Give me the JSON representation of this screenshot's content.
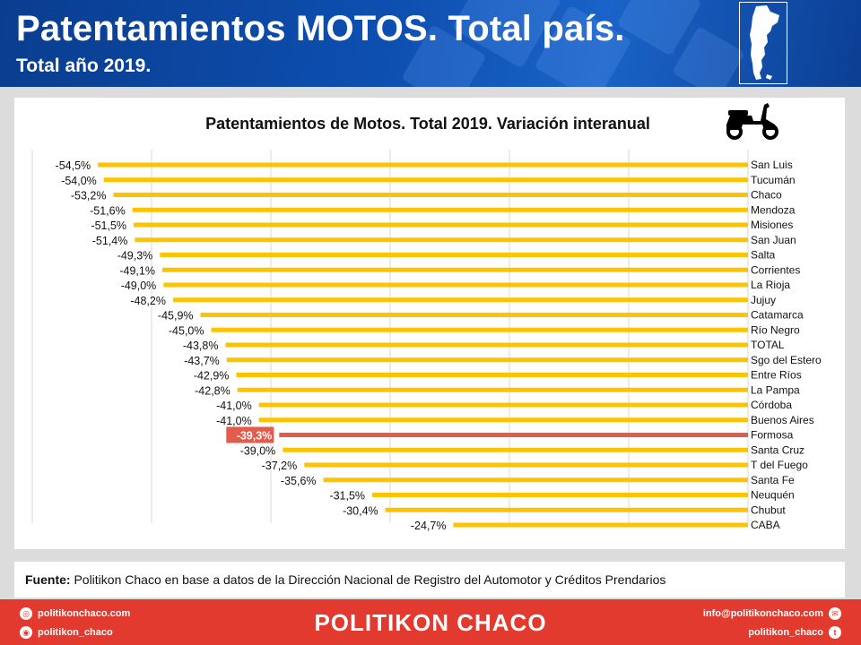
{
  "header": {
    "title": "Patentamientos MOTOS. Total país.",
    "subtitle": "Total año 2019."
  },
  "source": {
    "label": "Fuente:",
    "text": " Politikon Chaco en base a datos de la Dirección Nacional de Registro del Automotor  y Créditos Prendarios"
  },
  "footer": {
    "website": "politikonchaco.com",
    "instagram": "politikon_chaco",
    "brand": "POLITIKON CHACO",
    "email": "info@politikonchaco.com",
    "twitter": "politikon_chaco"
  },
  "icons": {
    "map": "argentina-map-icon",
    "motorcycle": "motorcycle-icon",
    "web": "globe-icon",
    "instagram": "instagram-icon",
    "email": "mail-icon",
    "twitter": "twitter-icon"
  },
  "colors": {
    "bar": "#fcc400",
    "highlight": "#e35b4a",
    "header": "#0d4fb0",
    "footer": "#e23a2f"
  },
  "chart_data": {
    "type": "bar",
    "orientation": "horizontal",
    "title": "Patentamientos de Motos. Total 2019. Variación interanual",
    "highlight_category": "Formosa",
    "xlim": [
      -60,
      0
    ],
    "grid": true,
    "categories": [
      "San Luis",
      "Tucumán",
      "Chaco",
      "Mendoza",
      "Misiones",
      "San Juan",
      "Salta",
      "Corrientes",
      "La Rioja",
      "Jujuy",
      "Catamarca",
      "Río Negro",
      "TOTAL",
      "Sgo del Estero",
      "Entre Ríos",
      "La Pampa",
      "Córdoba",
      "Buenos Aires",
      "Formosa",
      "Santa Cruz",
      "T del Fuego",
      "Santa Fe",
      "Neuquén",
      "Chubut",
      "CABA"
    ],
    "values": [
      -54.5,
      -54.0,
      -53.2,
      -51.6,
      -51.5,
      -51.4,
      -49.3,
      -49.1,
      -49.0,
      -48.2,
      -45.9,
      -45.0,
      -43.8,
      -43.7,
      -42.9,
      -42.8,
      -41.0,
      -41.0,
      -39.3,
      -39.0,
      -37.2,
      -35.6,
      -31.5,
      -30.4,
      -24.7
    ],
    "labels": [
      "-54,5%",
      "-54,0%",
      "-53,2%",
      "-51,6%",
      "-51,5%",
      "-51,4%",
      "-49,3%",
      "-49,1%",
      "-49,0%",
      "-48,2%",
      "-45,9%",
      "-45,0%",
      "-43,8%",
      "-43,7%",
      "-42,9%",
      "-42,8%",
      "-41,0%",
      "-41,0%",
      "-39,3%",
      "-39,0%",
      "-37,2%",
      "-35,6%",
      "-31,5%",
      "-30,4%",
      "-24,7%"
    ]
  }
}
